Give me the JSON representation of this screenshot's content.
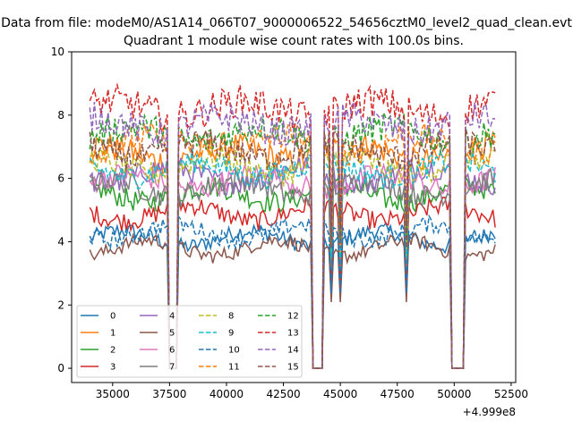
{
  "chart_data": {
    "type": "line",
    "suptitle": "Data from file: modeM0/AS1A14_066T07_9000006522_54656cztM0_level2_quad_clean.evt",
    "title": "Quadrant 1 module wise count rates with 100.0s bins.",
    "xlabel": "",
    "ylabel": "",
    "x_offset_label": "+4.999e8",
    "xlim": [
      33200,
      52700
    ],
    "ylim": [
      -0.45,
      10
    ],
    "xticks": [
      35000,
      37500,
      40000,
      42500,
      45000,
      47500,
      50000,
      52500
    ],
    "xtick_labels": [
      "35000",
      "37500",
      "40000",
      "42500",
      "45000",
      "47500",
      "50000",
      "52500"
    ],
    "yticks": [
      0,
      2,
      4,
      6,
      8,
      10
    ],
    "ytick_labels": [
      "0",
      "2",
      "4",
      "6",
      "8",
      "10"
    ],
    "grid": false,
    "legend_position": "lower-left",
    "x_start": 34000,
    "x_end": 51800,
    "bin": 100,
    "gaps": [
      {
        "x0": 37500,
        "x1": 37850
      },
      {
        "x0": 43350,
        "x1": 43350
      },
      {
        "x0": 43800,
        "x1": 44200
      },
      {
        "x0": 44600,
        "x1": 44600
      },
      {
        "x0": 45000,
        "x1": 45000
      },
      {
        "x0": 47900,
        "x1": 47900
      },
      {
        "x0": 49850,
        "x1": 50450
      }
    ],
    "series": [
      {
        "name": "0",
        "color": "#1f77b4",
        "dash": "solid",
        "mean": 4.1
      },
      {
        "name": "1",
        "color": "#ff7f0e",
        "dash": "solid",
        "mean": 6.8
      },
      {
        "name": "2",
        "color": "#2ca02c",
        "dash": "solid",
        "mean": 5.5
      },
      {
        "name": "3",
        "color": "#d62728",
        "dash": "solid",
        "mean": 4.9
      },
      {
        "name": "4",
        "color": "#9467bd",
        "dash": "solid",
        "mean": 6.1
      },
      {
        "name": "5",
        "color": "#8c564b",
        "dash": "solid",
        "mean": 3.8
      },
      {
        "name": "6",
        "color": "#e377c2",
        "dash": "solid",
        "mean": 5.9
      },
      {
        "name": "7",
        "color": "#7f7f7f",
        "dash": "solid",
        "mean": 5.7
      },
      {
        "name": "8",
        "color": "#bcbd22",
        "dash": "dashed",
        "mean": 6.4
      },
      {
        "name": "9",
        "color": "#17becf",
        "dash": "dashed",
        "mean": 6.3
      },
      {
        "name": "10",
        "color": "#1f77b4",
        "dash": "dashed",
        "mean": 4.3
      },
      {
        "name": "11",
        "color": "#ff7f0e",
        "dash": "dashed",
        "mean": 7.1
      },
      {
        "name": "12",
        "color": "#2ca02c",
        "dash": "dashed",
        "mean": 7.4
      },
      {
        "name": "13",
        "color": "#d62728",
        "dash": "dashed",
        "mean": 8.2
      },
      {
        "name": "14",
        "color": "#9467bd",
        "dash": "dashed",
        "mean": 7.7
      },
      {
        "name": "15",
        "color": "#8c564b",
        "dash": "dashed",
        "mean": 6.9
      }
    ]
  }
}
